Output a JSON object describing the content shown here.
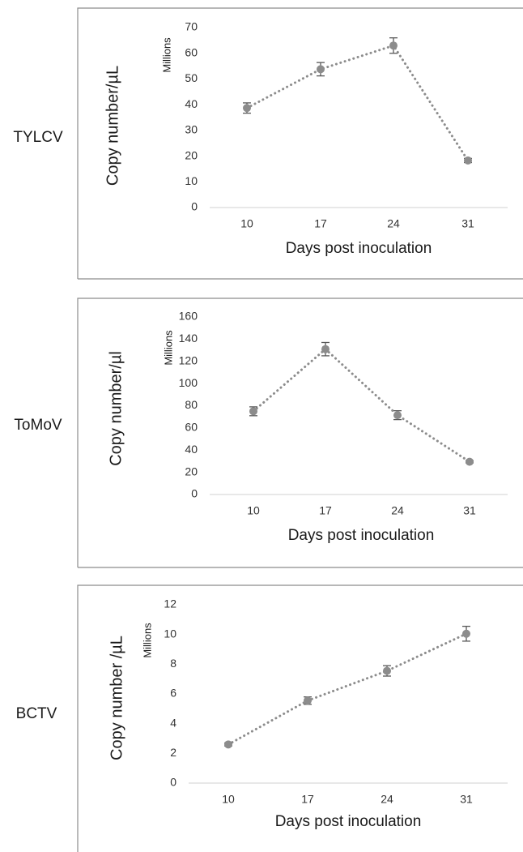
{
  "colors": {
    "marker": "#8c8c8c",
    "errorbar": "#595959",
    "axis": "#d9d9d9",
    "frame": "#8c8c8c"
  },
  "chart_data": [
    {
      "type": "line",
      "row_label": "TYLCV",
      "ylabel": "Copy number/µL",
      "units": "Millions",
      "xlabel": "Days post inoculation",
      "categories": [
        "10",
        "17",
        "24",
        "31"
      ],
      "values": [
        38.7,
        53.8,
        63.0,
        18.3
      ],
      "errors": [
        2.0,
        2.6,
        3.0,
        0.8
      ],
      "yticks": [
        0,
        10,
        20,
        30,
        40,
        50,
        60,
        70
      ],
      "ylim": [
        0,
        70
      ],
      "line_style": "dotted",
      "grid": false
    },
    {
      "type": "line",
      "row_label": "ToMoV",
      "ylabel": "Copy number/µl",
      "units": "Millions",
      "xlabel": "Days post inoculation",
      "categories": [
        "10",
        "17",
        "24",
        "31"
      ],
      "values": [
        75,
        131,
        71.5,
        29.5
      ],
      "errors": [
        4.0,
        6.0,
        4.0,
        1.0
      ],
      "yticks": [
        0,
        20,
        40,
        60,
        80,
        100,
        120,
        140,
        160
      ],
      "ylim": [
        0,
        160
      ],
      "line_style": "dotted",
      "grid": false
    },
    {
      "type": "line",
      "row_label": "BCTV",
      "ylabel": "Copy number /µL",
      "units": "Millions",
      "xlabel": "Days post inoculation",
      "categories": [
        "10",
        "17",
        "24",
        "31"
      ],
      "values": [
        2.6,
        5.55,
        7.55,
        10.05
      ],
      "errors": [
        0.1,
        0.25,
        0.35,
        0.5
      ],
      "yticks": [
        0,
        2,
        4,
        6,
        8,
        10,
        12
      ],
      "ylim": [
        0,
        12
      ],
      "line_style": "dotted",
      "grid": false
    }
  ]
}
